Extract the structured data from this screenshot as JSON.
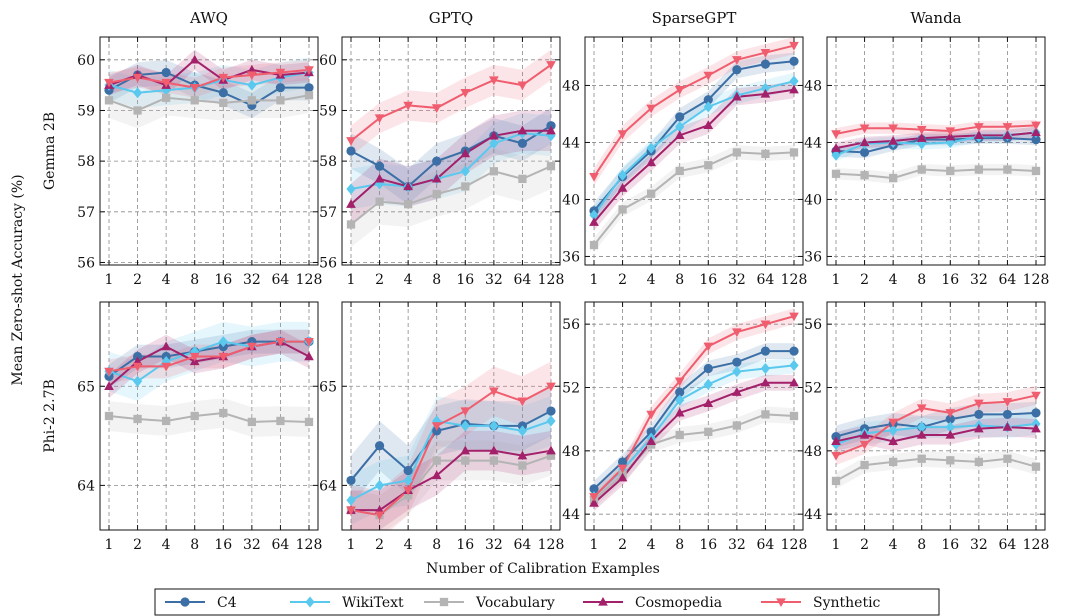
{
  "figure": {
    "xlabel": "Number of Calibration Examples",
    "ylabel": "Mean Zero-shot Accuracy (%)",
    "column_titles": [
      "AWQ",
      "GPTQ",
      "SparseGPT",
      "Wanda"
    ],
    "row_labels": [
      "Gemma 2B",
      "Phi-2 2.7B"
    ],
    "legend_position": "bottom-center",
    "grid": "dashed"
  },
  "series_styles": [
    {
      "name": "C4",
      "color": "#3b6fa5",
      "marker": "circle"
    },
    {
      "name": "WikiText",
      "color": "#5bc8ee",
      "marker": "diamond"
    },
    {
      "name": "Vocabulary",
      "color": "#b4b4b4",
      "marker": "square"
    },
    {
      "name": "Cosmopedia",
      "color": "#a3206a",
      "marker": "triangle-up"
    },
    {
      "name": "Synthetic",
      "color": "#ef5d6e",
      "marker": "triangle-down"
    }
  ],
  "chart_data": [
    {
      "type": "line",
      "row": 0,
      "col": 0,
      "title": "AWQ",
      "row_label": "Gemma 2B",
      "x": [
        "1",
        "2",
        "4",
        "8",
        "16",
        "32",
        "64",
        "128"
      ],
      "ylim": [
        55.95,
        60.45
      ],
      "yticks": [
        56,
        57,
        58,
        59,
        60
      ],
      "series": [
        {
          "name": "C4",
          "values": [
            59.4,
            59.7,
            59.75,
            59.5,
            59.35,
            59.1,
            59.45,
            59.45
          ],
          "band": 0.25
        },
        {
          "name": "WikiText",
          "values": [
            59.5,
            59.35,
            59.4,
            59.45,
            59.6,
            59.5,
            59.65,
            59.75
          ],
          "band": 0.3
        },
        {
          "name": "Vocabulary",
          "values": [
            59.2,
            59.0,
            59.25,
            59.2,
            59.15,
            59.2,
            59.2,
            59.3
          ],
          "band": 0.35
        },
        {
          "name": "Cosmopedia",
          "values": [
            59.5,
            59.7,
            59.5,
            60.0,
            59.6,
            59.8,
            59.7,
            59.75
          ],
          "band": 0.2
        },
        {
          "name": "Synthetic",
          "values": [
            59.55,
            59.65,
            59.55,
            59.45,
            59.65,
            59.7,
            59.75,
            59.8
          ],
          "band": 0.2
        }
      ]
    },
    {
      "type": "line",
      "row": 0,
      "col": 1,
      "title": "GPTQ",
      "row_label": "Gemma 2B",
      "x": [
        "1",
        "2",
        "4",
        "8",
        "16",
        "32",
        "64",
        "128"
      ],
      "ylim": [
        55.95,
        60.45
      ],
      "yticks": [
        56,
        57,
        58,
        59,
        60
      ],
      "series": [
        {
          "name": "C4",
          "values": [
            58.2,
            57.9,
            57.5,
            58.0,
            58.2,
            58.5,
            58.35,
            58.7
          ],
          "band": 0.35
        },
        {
          "name": "WikiText",
          "values": [
            57.45,
            57.55,
            57.5,
            57.65,
            57.8,
            58.35,
            58.55,
            58.5
          ],
          "band": 0.4
        },
        {
          "name": "Vocabulary",
          "values": [
            56.75,
            57.2,
            57.15,
            57.35,
            57.5,
            57.8,
            57.65,
            57.9
          ],
          "band": 0.45
        },
        {
          "name": "Cosmopedia",
          "values": [
            57.15,
            57.65,
            57.5,
            57.65,
            58.15,
            58.5,
            58.6,
            58.6
          ],
          "band": 0.4
        },
        {
          "name": "Synthetic",
          "values": [
            58.4,
            58.85,
            59.1,
            59.05,
            59.35,
            59.6,
            59.5,
            59.9
          ],
          "band": 0.3
        }
      ]
    },
    {
      "type": "line",
      "row": 0,
      "col": 2,
      "title": "SparseGPT",
      "row_label": "Gemma 2B",
      "x": [
        "1",
        "2",
        "4",
        "8",
        "16",
        "32",
        "64",
        "128"
      ],
      "ylim": [
        35.4,
        51.4
      ],
      "yticks": [
        36,
        40,
        44,
        48
      ],
      "series": [
        {
          "name": "C4",
          "values": [
            39.2,
            41.6,
            43.4,
            45.8,
            47.0,
            49.1,
            49.5,
            49.7
          ],
          "band": 0.6
        },
        {
          "name": "WikiText",
          "values": [
            38.9,
            41.7,
            43.6,
            45.1,
            46.5,
            47.3,
            47.8,
            48.3
          ],
          "band": 0.6
        },
        {
          "name": "Vocabulary",
          "values": [
            36.8,
            39.3,
            40.4,
            42.0,
            42.4,
            43.3,
            43.2,
            43.3
          ],
          "band": 0.5
        },
        {
          "name": "Cosmopedia",
          "values": [
            38.4,
            40.8,
            42.6,
            44.5,
            45.2,
            47.2,
            47.4,
            47.7
          ],
          "band": 0.6
        },
        {
          "name": "Synthetic",
          "values": [
            41.6,
            44.6,
            46.4,
            47.7,
            48.7,
            49.8,
            50.3,
            50.8
          ],
          "band": 0.6
        }
      ]
    },
    {
      "type": "line",
      "row": 0,
      "col": 3,
      "title": "Wanda",
      "row_label": "Gemma 2B",
      "x": [
        "1",
        "2",
        "4",
        "8",
        "16",
        "32",
        "64",
        "128"
      ],
      "ylim": [
        35.4,
        51.4
      ],
      "yticks": [
        36,
        40,
        44,
        48
      ],
      "series": [
        {
          "name": "C4",
          "values": [
            43.4,
            43.3,
            43.8,
            44.2,
            44.2,
            44.3,
            44.3,
            44.2
          ],
          "band": 0.4
        },
        {
          "name": "WikiText",
          "values": [
            43.1,
            43.9,
            44.0,
            43.9,
            44.0,
            44.4,
            44.5,
            44.7
          ],
          "band": 0.4
        },
        {
          "name": "Vocabulary",
          "values": [
            41.8,
            41.7,
            41.5,
            42.1,
            42.0,
            42.1,
            42.1,
            42.0
          ],
          "band": 0.4
        },
        {
          "name": "Cosmopedia",
          "values": [
            43.6,
            44.0,
            44.1,
            44.3,
            44.4,
            44.5,
            44.5,
            44.7
          ],
          "band": 0.4
        },
        {
          "name": "Synthetic",
          "values": [
            44.6,
            45.0,
            45.0,
            44.9,
            44.8,
            45.1,
            45.1,
            45.2
          ],
          "band": 0.4
        }
      ]
    },
    {
      "type": "line",
      "row": 1,
      "col": 0,
      "title": "",
      "row_label": "Phi-2 2.7B",
      "x": [
        "1",
        "2",
        "4",
        "8",
        "16",
        "32",
        "64",
        "128"
      ],
      "ylim": [
        63.55,
        65.85
      ],
      "yticks": [
        64,
        65
      ],
      "series": [
        {
          "name": "C4",
          "values": [
            65.1,
            65.3,
            65.3,
            65.35,
            65.4,
            65.45,
            65.45,
            65.45
          ],
          "band": 0.12
        },
        {
          "name": "WikiText",
          "values": [
            65.15,
            65.05,
            65.25,
            65.35,
            65.45,
            65.4,
            65.45,
            65.45
          ],
          "band": 0.2
        },
        {
          "name": "Vocabulary",
          "values": [
            64.7,
            64.67,
            64.65,
            64.7,
            64.73,
            64.64,
            64.65,
            64.64
          ],
          "band": 0.15
        },
        {
          "name": "Cosmopedia",
          "values": [
            65.0,
            65.25,
            65.4,
            65.25,
            65.3,
            65.4,
            65.45,
            65.3
          ],
          "band": 0.12
        },
        {
          "name": "Synthetic",
          "values": [
            65.15,
            65.2,
            65.2,
            65.3,
            65.3,
            65.4,
            65.45,
            65.45
          ],
          "band": 0.12
        }
      ]
    },
    {
      "type": "line",
      "row": 1,
      "col": 1,
      "title": "",
      "row_label": "Phi-2 2.7B",
      "x": [
        "1",
        "2",
        "4",
        "8",
        "16",
        "32",
        "64",
        "128"
      ],
      "ylim": [
        63.55,
        65.85
      ],
      "yticks": [
        64,
        65
      ],
      "series": [
        {
          "name": "C4",
          "values": [
            64.05,
            64.4,
            64.15,
            64.55,
            64.62,
            64.6,
            64.6,
            64.75
          ],
          "band": 0.25
        },
        {
          "name": "WikiText",
          "values": [
            63.85,
            64.0,
            64.05,
            64.65,
            64.6,
            64.6,
            64.55,
            64.65
          ],
          "band": 0.25
        },
        {
          "name": "Vocabulary",
          "values": [
            63.75,
            63.7,
            63.9,
            64.25,
            64.25,
            64.25,
            64.2,
            64.3
          ],
          "band": 0.2
        },
        {
          "name": "Cosmopedia",
          "values": [
            63.75,
            63.75,
            63.95,
            64.1,
            64.35,
            64.35,
            64.3,
            64.35
          ],
          "band": 0.2
        },
        {
          "name": "Synthetic",
          "values": [
            63.75,
            63.7,
            63.95,
            64.6,
            64.75,
            64.95,
            64.85,
            65.0
          ],
          "band": 0.25
        }
      ]
    },
    {
      "type": "line",
      "row": 1,
      "col": 2,
      "title": "",
      "row_label": "Phi-2 2.7B",
      "x": [
        "1",
        "2",
        "4",
        "8",
        "16",
        "32",
        "64",
        "128"
      ],
      "ylim": [
        43.0,
        57.4
      ],
      "yticks": [
        44,
        48,
        52,
        56
      ],
      "series": [
        {
          "name": "C4",
          "values": [
            45.6,
            47.3,
            49.2,
            51.7,
            53.2,
            53.6,
            54.3,
            54.3
          ],
          "band": 0.5
        },
        {
          "name": "WikiText",
          "values": [
            45.1,
            46.8,
            48.8,
            51.2,
            52.2,
            53.0,
            53.2,
            53.4
          ],
          "band": 0.5
        },
        {
          "name": "Vocabulary",
          "values": [
            44.9,
            46.5,
            48.4,
            49.0,
            49.2,
            49.6,
            50.3,
            50.2
          ],
          "band": 0.5
        },
        {
          "name": "Cosmopedia",
          "values": [
            44.7,
            46.3,
            48.6,
            50.4,
            51.0,
            51.7,
            52.3,
            52.3
          ],
          "band": 0.5
        },
        {
          "name": "Synthetic",
          "values": [
            45.1,
            46.9,
            50.3,
            52.4,
            54.6,
            55.5,
            56.0,
            56.5
          ],
          "band": 0.5
        }
      ]
    },
    {
      "type": "line",
      "row": 1,
      "col": 3,
      "title": "",
      "row_label": "Phi-2 2.7B",
      "x": [
        "1",
        "2",
        "4",
        "8",
        "16",
        "32",
        "64",
        "128"
      ],
      "ylim": [
        43.0,
        57.4
      ],
      "yticks": [
        44,
        48,
        52,
        56
      ],
      "series": [
        {
          "name": "C4",
          "values": [
            48.9,
            49.4,
            49.7,
            49.5,
            50.0,
            50.3,
            50.3,
            50.4
          ],
          "band": 0.7
        },
        {
          "name": "WikiText",
          "values": [
            48.4,
            49.1,
            49.3,
            49.5,
            49.5,
            49.6,
            49.5,
            49.7
          ],
          "band": 0.7
        },
        {
          "name": "Vocabulary",
          "values": [
            46.1,
            47.1,
            47.3,
            47.5,
            47.4,
            47.3,
            47.5,
            47.0
          ],
          "band": 0.5
        },
        {
          "name": "Cosmopedia",
          "values": [
            48.6,
            49.0,
            48.6,
            49.0,
            49.0,
            49.4,
            49.5,
            49.4
          ],
          "band": 0.6
        },
        {
          "name": "Synthetic",
          "values": [
            47.7,
            48.4,
            49.8,
            50.7,
            50.4,
            51.0,
            51.1,
            51.5
          ],
          "band": 0.6
        }
      ]
    }
  ]
}
